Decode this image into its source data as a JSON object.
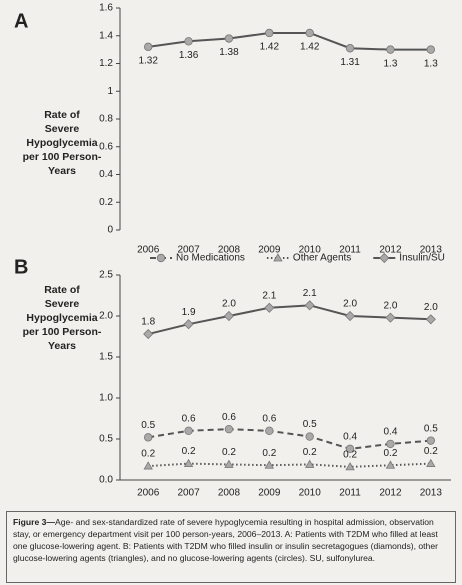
{
  "chart_data": [
    {
      "type": "line",
      "panel": "A",
      "y_label": [
        "Rate of",
        "Severe",
        "Hypoglycemia",
        "per 100 Person-",
        "Years"
      ],
      "categories": [
        "2006",
        "2007",
        "2008",
        "2009",
        "2010",
        "2011",
        "2012",
        "2013"
      ],
      "ylim": [
        0,
        1.6
      ],
      "yticks": [
        0,
        0.2,
        0.4,
        0.6,
        0.8,
        1,
        1.2,
        1.4,
        1.6
      ],
      "series": [
        {
          "color": "#555555",
          "marker": "circle",
          "line_style": "solid",
          "values": [
            1.32,
            1.36,
            1.38,
            1.42,
            1.42,
            1.31,
            1.3,
            1.3
          ]
        }
      ]
    },
    {
      "type": "line",
      "panel": "B",
      "y_label": [
        "Rate of",
        "Severe",
        "Hypoglycemia",
        "per 100 Person-",
        "Years"
      ],
      "categories": [
        "2006",
        "2007",
        "2008",
        "2009",
        "2010",
        "2011",
        "2012",
        "2013"
      ],
      "ylim": [
        0,
        2.5
      ],
      "yticks": [
        {
          "value": 0,
          "label": "0.0"
        },
        0.5,
        {
          "value": 1,
          "label": "1.0"
        },
        1.5,
        {
          "value": 2,
          "label": "2.0"
        },
        2.5
      ],
      "legend": "top",
      "series": [
        {
          "name": "No Medications",
          "color": "#555555",
          "marker": "circle",
          "line_style": "dashed",
          "values": [
            0.52,
            0.6,
            0.62,
            0.6,
            0.53,
            0.38,
            0.44,
            0.48
          ],
          "value_labels": [
            "0.5",
            "0.6",
            "0.6",
            "0.6",
            "0.5",
            "0.4",
            "0.4",
            "0.5"
          ]
        },
        {
          "name": "Other Agents",
          "color": "#555555",
          "marker": "triangle",
          "line_style": "dotted",
          "values": [
            0.17,
            0.2,
            0.19,
            0.18,
            0.19,
            0.16,
            0.18,
            0.2
          ],
          "value_labels": [
            "0.2",
            "0.2",
            "0.2",
            "0.2",
            "0.2",
            "0.2",
            "0.2",
            "0.2"
          ]
        },
        {
          "name": "Insulin/SU",
          "color": "#555555",
          "marker": "diamond",
          "line_style": "solid",
          "values": [
            1.78,
            1.9,
            2.0,
            2.1,
            2.13,
            2.0,
            1.98,
            1.96
          ],
          "value_labels": [
            "1.8",
            "1.9",
            "2.0",
            "2.1",
            "2.1",
            "2.0",
            "2.0",
            "2.0"
          ]
        }
      ]
    }
  ],
  "caption": {
    "label": "Figure 3—",
    "text": "Age- and sex-standardized rate of severe hypoglycemia resulting in hospital admission, observation stay, or emergency department visit per 100 person-years, 2006–2013. A: Patients with T2DM who filled at least one glucose-lowering agent. B: Patients with T2DM who filled insulin or insulin secretagogues (diamonds), other glucose-lowering agents (triangles), and no glucose-lowering agents (circles). SU, sulfonylurea."
  }
}
